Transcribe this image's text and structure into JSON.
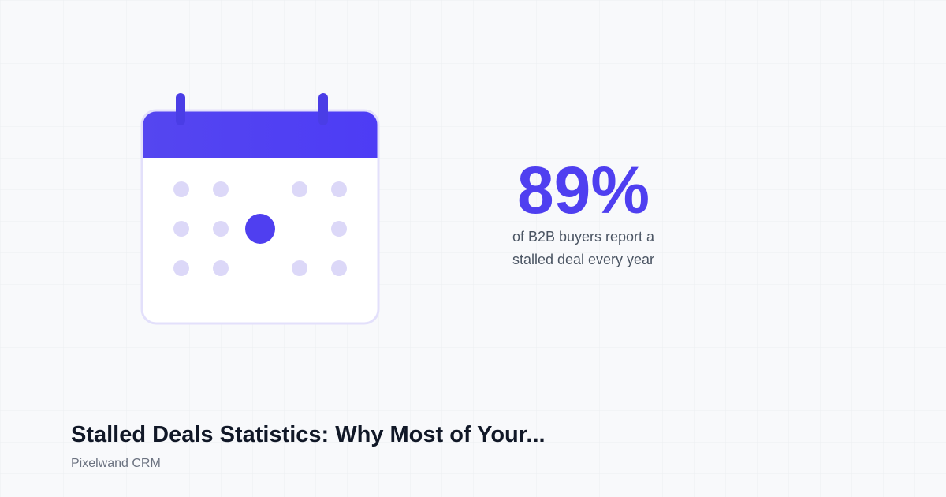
{
  "stat": {
    "value": "89%",
    "lines": [
      "of B2B buyers report a",
      "stalled deal every year"
    ]
  },
  "article": {
    "title": "Stalled Deals Statistics: Why Most of Your...",
    "brand": "Pixelwand CRM"
  }
}
